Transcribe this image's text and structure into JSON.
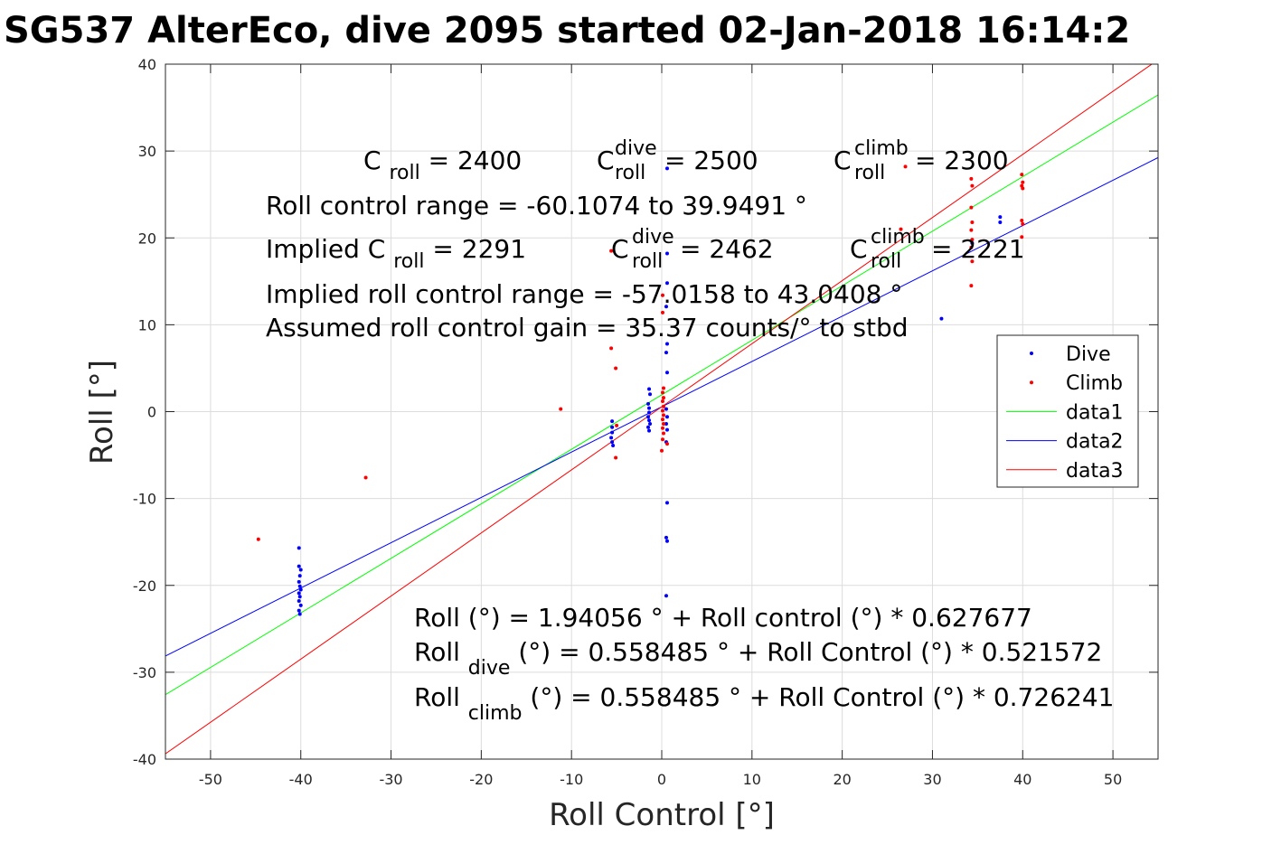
{
  "chart_data": {
    "type": "scatter",
    "title": "SG537 AlterEco, dive 2095 started 02-Jan-2018 16:14:2",
    "xlabel": "Roll Control [°]",
    "ylabel": "Roll [°]",
    "xlim": [
      -55,
      55
    ],
    "ylim": [
      -40,
      40
    ],
    "xticks": [
      -50,
      -40,
      -30,
      -20,
      -10,
      0,
      10,
      20,
      30,
      40,
      50
    ],
    "yticks": [
      -40,
      -30,
      -20,
      -10,
      0,
      10,
      20,
      30,
      40
    ],
    "xtick_labels": [
      "-50",
      "-40",
      "-30",
      "-20",
      "-10",
      "0",
      "10",
      "20",
      "30",
      "40",
      "50"
    ],
    "ytick_labels": [
      "-40",
      "-30",
      "-20",
      "-10",
      "0",
      "10",
      "20",
      "30",
      "40"
    ],
    "grid": true,
    "legend_position": "right",
    "series": [
      {
        "name": "Dive",
        "kind": "points",
        "color": "#0000ff",
        "points": [
          [
            -40.2,
            -15.7
          ],
          [
            -40.2,
            -17.8
          ],
          [
            -40.0,
            -18.2
          ],
          [
            -40.1,
            -18.9
          ],
          [
            -40.2,
            -19.6
          ],
          [
            -40.1,
            -20.1
          ],
          [
            -40.0,
            -20.5
          ],
          [
            -40.2,
            -20.9
          ],
          [
            -40.1,
            -21.3
          ],
          [
            -40.2,
            -21.8
          ],
          [
            -40.0,
            -22.3
          ],
          [
            -40.2,
            -22.9
          ],
          [
            -40.1,
            -23.3
          ],
          [
            -5.5,
            -1.1
          ],
          [
            -5.5,
            -1.8
          ],
          [
            -5.5,
            -2.4
          ],
          [
            -5.6,
            -3.0
          ],
          [
            -5.5,
            -3.5
          ],
          [
            -5.4,
            -3.9
          ],
          [
            -1.4,
            2.6
          ],
          [
            -1.3,
            2.0
          ],
          [
            -1.5,
            0.9
          ],
          [
            -1.4,
            0.4
          ],
          [
            -1.4,
            -0.1
          ],
          [
            -1.5,
            -0.6
          ],
          [
            -1.4,
            -1.0
          ],
          [
            -1.3,
            -1.4
          ],
          [
            -1.5,
            -1.8
          ],
          [
            -1.4,
            -2.2
          ],
          [
            0.6,
            28.0
          ],
          [
            0.6,
            18.2
          ],
          [
            0.6,
            14.8
          ],
          [
            0.5,
            12.1
          ],
          [
            0.6,
            7.8
          ],
          [
            0.5,
            6.8
          ],
          [
            0.6,
            4.5
          ],
          [
            0.5,
            0.3
          ],
          [
            0.6,
            -0.6
          ],
          [
            0.5,
            -1.4
          ],
          [
            0.6,
            -2.1
          ],
          [
            0.5,
            -3.5
          ],
          [
            0.6,
            -10.5
          ],
          [
            0.5,
            -14.5
          ],
          [
            0.6,
            -14.9
          ],
          [
            0.5,
            -21.2
          ],
          [
            31.0,
            10.7
          ],
          [
            34.4,
            19.4
          ],
          [
            37.5,
            22.4
          ],
          [
            37.5,
            21.8
          ]
        ]
      },
      {
        "name": "Climb",
        "kind": "points",
        "color": "#ff0000",
        "points": [
          [
            -44.7,
            -14.7
          ],
          [
            -32.8,
            -7.6
          ],
          [
            -11.2,
            0.3
          ],
          [
            -5.6,
            18.5
          ],
          [
            -5.6,
            7.3
          ],
          [
            -5.1,
            5.0
          ],
          [
            -5.1,
            -5.3
          ],
          [
            -5.0,
            -1.6
          ],
          [
            0.1,
            13.4
          ],
          [
            0.1,
            11.4
          ],
          [
            0.2,
            2.7
          ],
          [
            0.1,
            2.2
          ],
          [
            0.2,
            1.6
          ],
          [
            0.1,
            1.2
          ],
          [
            0.2,
            0.6
          ],
          [
            0.1,
            0.1
          ],
          [
            0.2,
            -0.4
          ],
          [
            0.1,
            -0.9
          ],
          [
            0.2,
            -1.4
          ],
          [
            0.1,
            -1.9
          ],
          [
            0.2,
            -2.5
          ],
          [
            0.1,
            -3.2
          ],
          [
            0.0,
            -4.5
          ],
          [
            0.6,
            -3.7
          ],
          [
            27.0,
            28.2
          ],
          [
            26.5,
            21.0
          ],
          [
            34.3,
            26.8
          ],
          [
            34.4,
            26.0
          ],
          [
            34.3,
            23.5
          ],
          [
            34.4,
            21.8
          ],
          [
            34.3,
            20.9
          ],
          [
            34.4,
            19.8
          ],
          [
            34.3,
            18.9
          ],
          [
            34.4,
            17.3
          ],
          [
            34.3,
            14.5
          ],
          [
            39.9,
            27.3
          ],
          [
            40.0,
            26.4
          ],
          [
            39.9,
            26.0
          ],
          [
            40.0,
            25.7
          ],
          [
            39.9,
            22.0
          ],
          [
            40.0,
            21.6
          ],
          [
            39.9,
            20.1
          ]
        ]
      },
      {
        "name": "data1",
        "kind": "line",
        "color": "#00ff00",
        "intercept": 1.94056,
        "slope": 0.627677
      },
      {
        "name": "data2",
        "kind": "line",
        "color": "#0000ff",
        "intercept": 0.558485,
        "slope": 0.521572
      },
      {
        "name": "data3",
        "kind": "line",
        "color": "#ff0000",
        "intercept": 0.558485,
        "slope": 0.726241
      }
    ],
    "legend": [
      {
        "label": "Dive",
        "marker": "point",
        "color": "#0000ff"
      },
      {
        "label": "Climb",
        "marker": "point",
        "color": "#ff0000"
      },
      {
        "label": "data1",
        "marker": "line",
        "color": "#00ff00"
      },
      {
        "label": "data2",
        "marker": "line",
        "color": "#0000ff"
      },
      {
        "label": "data3",
        "marker": "line",
        "color": "#ff0000"
      }
    ],
    "annotations": {
      "c_roll": {
        "sym": "C",
        "sub": "roll",
        "val": " = 2400"
      },
      "c_roll_dive": {
        "sym": "C",
        "sup": "dive",
        "sub": "roll",
        "val": " = 2500"
      },
      "c_roll_climb": {
        "sym": "C",
        "sup": "climb",
        "sub": "roll",
        "val": " = 2300"
      },
      "roll_range": "Roll control range = -60.1074 to 39.9491 °",
      "implied_c_roll": {
        "pre": "Implied C",
        "sub": "roll",
        "val": " = 2291"
      },
      "implied_c_dive": {
        "sym": "C",
        "sup": "dive",
        "sub": "roll",
        "val": " = 2462"
      },
      "implied_c_climb": {
        "sym": "C",
        "sup": "climb",
        "sub": "roll",
        "val": " = 2221"
      },
      "implied_range": "Implied roll control range = -57.0158 to 43.0408 °",
      "gain": "Assumed roll control gain = 35.37 counts/° to stbd",
      "fit_all": "Roll (°) = 1.94056 ° + Roll control (°) * 0.627677",
      "fit_dive": {
        "pre": "Roll",
        "sub": "dive",
        "post": " (°) = 0.558485 ° + Roll Control (°) * 0.521572"
      },
      "fit_climb": {
        "pre": "Roll",
        "sub": "climb",
        "post": " (°) = 0.558485 ° + Roll Control (°) * 0.726241"
      }
    }
  }
}
